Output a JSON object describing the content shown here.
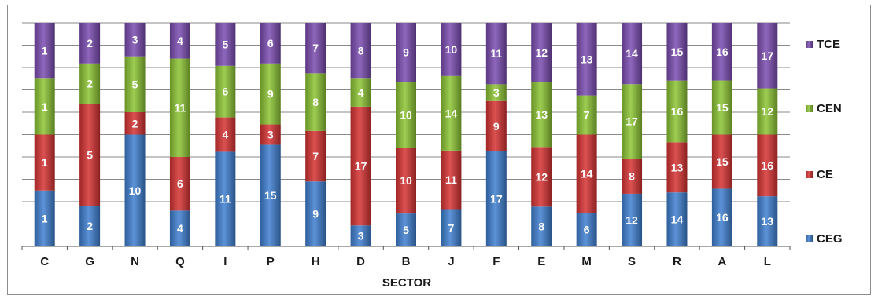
{
  "chart_data": {
    "type": "bar",
    "stacked": "percent",
    "xlabel": "SECTOR",
    "ylabel": "",
    "title": "",
    "grid": true,
    "legend_position": "right",
    "categories": [
      "C",
      "G",
      "N",
      "Q",
      "I",
      "P",
      "H",
      "D",
      "B",
      "J",
      "F",
      "E",
      "M",
      "S",
      "R",
      "A",
      "L"
    ],
    "series": [
      {
        "name": "CEG",
        "color": "#3f7fd0",
        "values": [
          1,
          2,
          10,
          4,
          11,
          15,
          9,
          3,
          5,
          7,
          17,
          8,
          6,
          12,
          14,
          16,
          13
        ]
      },
      {
        "name": "CE",
        "color": "#d63232",
        "values": [
          1,
          5,
          2,
          6,
          4,
          3,
          7,
          17,
          10,
          11,
          9,
          12,
          14,
          8,
          13,
          15,
          16
        ]
      },
      {
        "name": "CEN",
        "color": "#8cc434",
        "values": [
          1,
          2,
          5,
          11,
          6,
          9,
          8,
          4,
          10,
          14,
          3,
          13,
          7,
          17,
          16,
          15,
          12
        ]
      },
      {
        "name": "TCE",
        "color": "#7a4cb0",
        "values": [
          1,
          2,
          3,
          4,
          5,
          6,
          7,
          8,
          9,
          10,
          11,
          12,
          13,
          14,
          15,
          16,
          17
        ]
      }
    ],
    "legend_order": [
      "TCE",
      "CEN",
      "CE",
      "CEG"
    ]
  }
}
